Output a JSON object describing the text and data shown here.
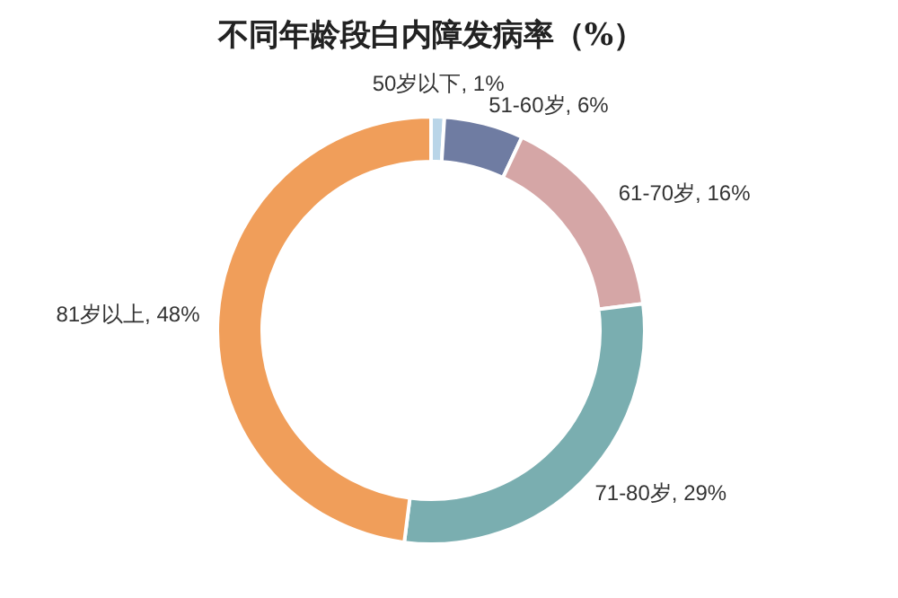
{
  "chart_data": {
    "type": "donut",
    "title": "不同年龄段白内障发病率（%）",
    "categories": [
      "50岁以下",
      "51-60岁",
      "61-70岁",
      "71-80岁",
      "81岁以上"
    ],
    "values": [
      1,
      6,
      16,
      29,
      48
    ],
    "colors": [
      "#b9d5e8",
      "#6f7ca2",
      "#d5a6a6",
      "#7aaeb0",
      "#f09e5a"
    ],
    "value_labels": [
      "1%",
      "6%",
      "16%",
      "29%",
      "48%"
    ],
    "legend": false
  }
}
